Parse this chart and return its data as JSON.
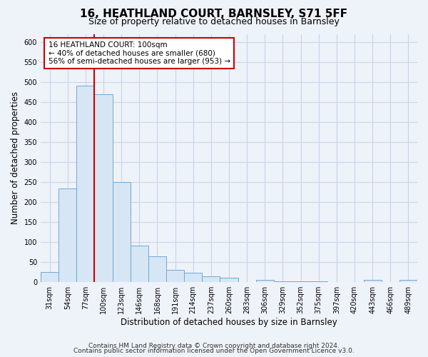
{
  "title": "16, HEATHLAND COURT, BARNSLEY, S71 5FF",
  "subtitle": "Size of property relative to detached houses in Barnsley",
  "xlabel": "Distribution of detached houses by size in Barnsley",
  "ylabel": "Number of detached properties",
  "bin_labels": [
    "31sqm",
    "54sqm",
    "77sqm",
    "100sqm",
    "123sqm",
    "146sqm",
    "168sqm",
    "191sqm",
    "214sqm",
    "237sqm",
    "260sqm",
    "283sqm",
    "306sqm",
    "329sqm",
    "352sqm",
    "375sqm",
    "397sqm",
    "420sqm",
    "443sqm",
    "466sqm",
    "489sqm"
  ],
  "bar_heights": [
    25,
    233,
    490,
    470,
    250,
    90,
    63,
    30,
    22,
    13,
    10,
    0,
    5,
    2,
    1,
    1,
    0,
    0,
    5,
    0,
    5
  ],
  "bar_color": "#d6e6f5",
  "bar_edge_color": "#6fa8d4",
  "vline_x_index": 3,
  "vline_color": "#cc0000",
  "annotation_title": "16 HEATHLAND COURT: 100sqm",
  "annotation_line1": "← 40% of detached houses are smaller (680)",
  "annotation_line2": "56% of semi-detached houses are larger (953) →",
  "annotation_box_facecolor": "#ffffff",
  "annotation_box_edgecolor": "#cc0000",
  "ylim": [
    0,
    620
  ],
  "yticks": [
    0,
    50,
    100,
    150,
    200,
    250,
    300,
    350,
    400,
    450,
    500,
    550,
    600
  ],
  "footnote1": "Contains HM Land Registry data © Crown copyright and database right 2024.",
  "footnote2": "Contains public sector information licensed under the Open Government Licence v3.0.",
  "bg_color": "#eef2f9",
  "plot_bg_color": "#eef2f9",
  "grid_color": "#c8d4e8",
  "title_fontsize": 11,
  "subtitle_fontsize": 9,
  "axis_label_fontsize": 8.5,
  "tick_fontsize": 7,
  "annotation_fontsize": 7.5,
  "footnote_fontsize": 6.5
}
